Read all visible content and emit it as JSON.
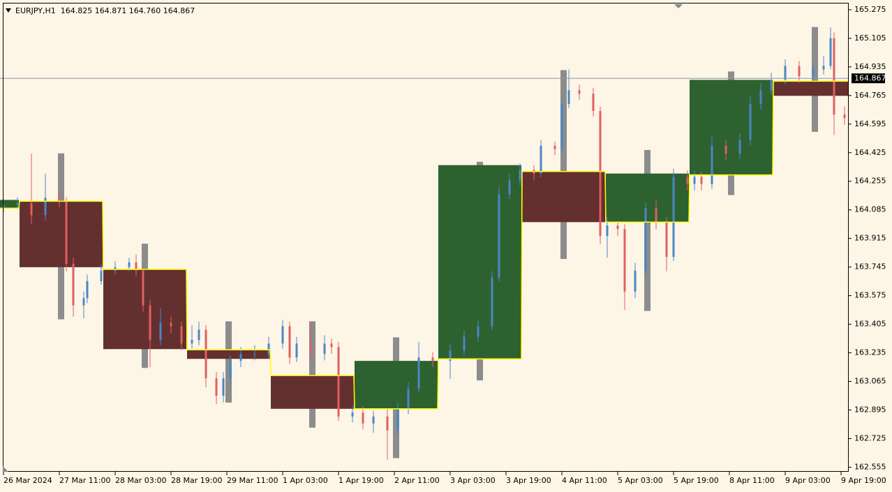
{
  "chart_data": {
    "type": "candlestick",
    "title": "EURJPY,H1  164.825 164.871 164.760 164.867",
    "xlim": [
      -1,
      242.2
    ],
    "ylim": [
      162.5277,
      165.3328
    ],
    "yticks": [
      165.275,
      165.105,
      164.935,
      164.765,
      164.595,
      164.425,
      164.255,
      164.085,
      163.915,
      163.745,
      163.575,
      163.405,
      163.235,
      163.065,
      162.895,
      162.725,
      162.555
    ],
    "xticks": [
      {
        "value": 0,
        "label": "26 Mar 2024"
      },
      {
        "value": 16,
        "label": "27 Mar 11:00"
      },
      {
        "value": 32,
        "label": "28 Mar 03:00"
      },
      {
        "value": 48,
        "label": "28 Mar 19:00"
      },
      {
        "value": 64,
        "label": "29 Mar 11:00"
      },
      {
        "value": 80,
        "label": "1 Apr 03:00"
      },
      {
        "value": 96,
        "label": "1 Apr 19:00"
      },
      {
        "value": 112,
        "label": "2 Apr 11:00"
      },
      {
        "value": 128,
        "label": "3 Apr 03:00"
      },
      {
        "value": 144,
        "label": "3 Apr 19:00"
      },
      {
        "value": 160,
        "label": "4 Apr 11:00"
      },
      {
        "value": 176,
        "label": "5 Apr 03:00"
      },
      {
        "value": 192,
        "label": "5 Apr 19:00"
      },
      {
        "value": 208,
        "label": "8 Apr 11:00"
      },
      {
        "value": 224,
        "label": "9 Apr 03:00"
      },
      {
        "value": 240,
        "label": "9 Apr 19:00"
      }
    ],
    "bid": 164.867,
    "colors": {
      "bull": "#4a86c8",
      "bear": "#e06060",
      "box_bull": "#2e6130",
      "box_bear": "#642f2f",
      "box_wick": "#8c8c8c",
      "open_line": "#ffff00",
      "bid_line": "#8a9aa6"
    },
    "candles": {
      "x": [
        0,
        4,
        8,
        12,
        16,
        18,
        20,
        23,
        24,
        28,
        32,
        36,
        38,
        40,
        42,
        45,
        48,
        51,
        54,
        56,
        58,
        61,
        63,
        65,
        68,
        72,
        76,
        80,
        82,
        84,
        88,
        92,
        94,
        96,
        100,
        103,
        106,
        110,
        113,
        116,
        119,
        123,
        128,
        132,
        136,
        140,
        142,
        145,
        148,
        152,
        154,
        158,
        160,
        162,
        165,
        169,
        171,
        173,
        176,
        178,
        181,
        184,
        187,
        190,
        192,
        196,
        198,
        200,
        203,
        207,
        211,
        214,
        217,
        220,
        224,
        228,
        232,
        235,
        237,
        238,
        241
      ],
      "open": [
        164.095,
        164.115,
        164.124,
        164.053,
        164.157,
        164.136,
        163.765,
        163.517,
        163.56,
        163.661,
        163.723,
        163.744,
        163.773,
        163.723,
        163.517,
        163.311,
        163.414,
        163.393,
        163.29,
        163.311,
        163.372,
        163.083,
        162.98,
        163.083,
        163.187,
        163.228,
        163.228,
        163.29,
        163.393,
        163.207,
        163.29,
        163.228,
        163.29,
        163.269,
        162.856,
        162.88,
        162.815,
        162.856,
        162.774,
        162.898,
        163.022,
        163.207,
        163.187,
        163.248,
        163.331,
        163.393,
        163.682,
        164.177,
        164.26,
        164.322,
        164.301,
        164.466,
        164.446,
        164.714,
        164.796,
        164.776,
        164.673,
        163.93,
        163.992,
        163.971,
        163.599,
        163.723,
        164.095,
        164.012,
        163.806,
        164.281,
        164.239,
        164.281,
        164.239,
        164.466,
        164.42,
        164.5,
        164.714,
        164.796,
        164.858,
        164.941,
        164.879,
        164.92,
        164.941,
        165.106,
        164.652
      ],
      "high": [
        164.15,
        164.16,
        164.42,
        164.3,
        164.2,
        164.16,
        163.8,
        163.6,
        163.7,
        163.76,
        163.78,
        163.8,
        163.82,
        163.75,
        163.55,
        163.5,
        163.45,
        163.42,
        163.4,
        163.42,
        163.4,
        163.12,
        163.12,
        163.22,
        163.27,
        163.28,
        163.33,
        163.43,
        163.42,
        163.33,
        163.42,
        163.34,
        163.32,
        163.3,
        162.92,
        162.92,
        162.89,
        162.9,
        162.94,
        163.06,
        163.3,
        163.24,
        163.29,
        163.37,
        163.43,
        163.72,
        164.22,
        164.3,
        164.36,
        164.35,
        164.5,
        164.49,
        164.75,
        164.92,
        164.83,
        164.81,
        164.7,
        164.04,
        164.02,
        164.0,
        163.77,
        164.13,
        164.14,
        164.04,
        164.33,
        164.32,
        164.32,
        164.31,
        164.52,
        164.5,
        164.54,
        164.76,
        164.84,
        164.9,
        164.98,
        164.97,
        164.96,
        165.0,
        165.17,
        165.14,
        164.7
      ],
      "low": [
        164.07,
        164.09,
        164.0,
        164.02,
        164.1,
        163.72,
        163.45,
        163.44,
        163.53,
        163.64,
        163.7,
        163.72,
        163.69,
        163.48,
        163.15,
        163.28,
        163.35,
        163.25,
        163.26,
        163.28,
        163.03,
        162.93,
        162.94,
        163.05,
        163.15,
        163.19,
        163.2,
        163.26,
        163.17,
        163.18,
        163.2,
        163.19,
        163.23,
        162.83,
        162.82,
        162.78,
        162.76,
        162.6,
        162.74,
        162.87,
        163.0,
        163.15,
        163.08,
        163.22,
        163.3,
        163.37,
        163.66,
        164.15,
        164.23,
        164.26,
        164.28,
        164.41,
        164.42,
        164.69,
        164.74,
        164.64,
        163.88,
        163.8,
        163.93,
        163.49,
        163.56,
        163.69,
        163.97,
        163.72,
        163.78,
        164.2,
        164.2,
        164.2,
        164.21,
        164.38,
        164.39,
        164.47,
        164.68,
        164.77,
        164.83,
        164.84,
        164.85,
        164.89,
        164.92,
        164.53,
        164.59
      ],
      "close": [
        164.115,
        164.124,
        164.053,
        164.157,
        164.136,
        163.765,
        163.517,
        163.56,
        163.661,
        163.723,
        163.744,
        163.773,
        163.723,
        163.517,
        163.311,
        163.414,
        163.393,
        163.29,
        163.311,
        163.372,
        163.083,
        162.98,
        163.083,
        163.187,
        163.228,
        163.228,
        163.29,
        163.393,
        163.207,
        163.29,
        163.228,
        163.29,
        163.269,
        162.856,
        162.88,
        162.815,
        162.856,
        162.774,
        162.898,
        163.022,
        163.207,
        163.187,
        163.248,
        163.331,
        163.393,
        163.682,
        164.177,
        164.26,
        164.322,
        164.301,
        164.466,
        164.446,
        164.714,
        164.796,
        164.776,
        164.673,
        163.93,
        163.992,
        163.971,
        163.599,
        163.723,
        164.095,
        164.012,
        163.806,
        164.281,
        164.239,
        164.281,
        164.239,
        164.466,
        164.42,
        164.5,
        164.714,
        164.796,
        164.858,
        164.941,
        164.879,
        164.92,
        164.941,
        165.106,
        164.652,
        164.631
      ]
    },
    "boxes": {
      "start": [
        -19,
        5,
        29,
        53,
        77,
        101,
        125,
        149,
        173,
        197,
        221
      ],
      "length": 24,
      "open": [
        164.095,
        164.136,
        163.731,
        163.253,
        163.1,
        162.902,
        163.199,
        164.313,
        164.012,
        164.293,
        164.85
      ],
      "high": [
        164.144,
        164.421,
        163.884,
        163.422,
        163.422,
        163.327,
        164.371,
        164.916,
        164.441,
        164.908,
        165.172
      ],
      "low": [
        164.095,
        163.434,
        163.145,
        162.939,
        162.79,
        162.609,
        163.071,
        163.793,
        163.484,
        164.173,
        164.549
      ],
      "close": [
        164.144,
        163.744,
        163.257,
        163.199,
        162.902,
        163.187,
        164.351,
        164.012,
        164.301,
        164.858,
        164.763
      ]
    }
  }
}
